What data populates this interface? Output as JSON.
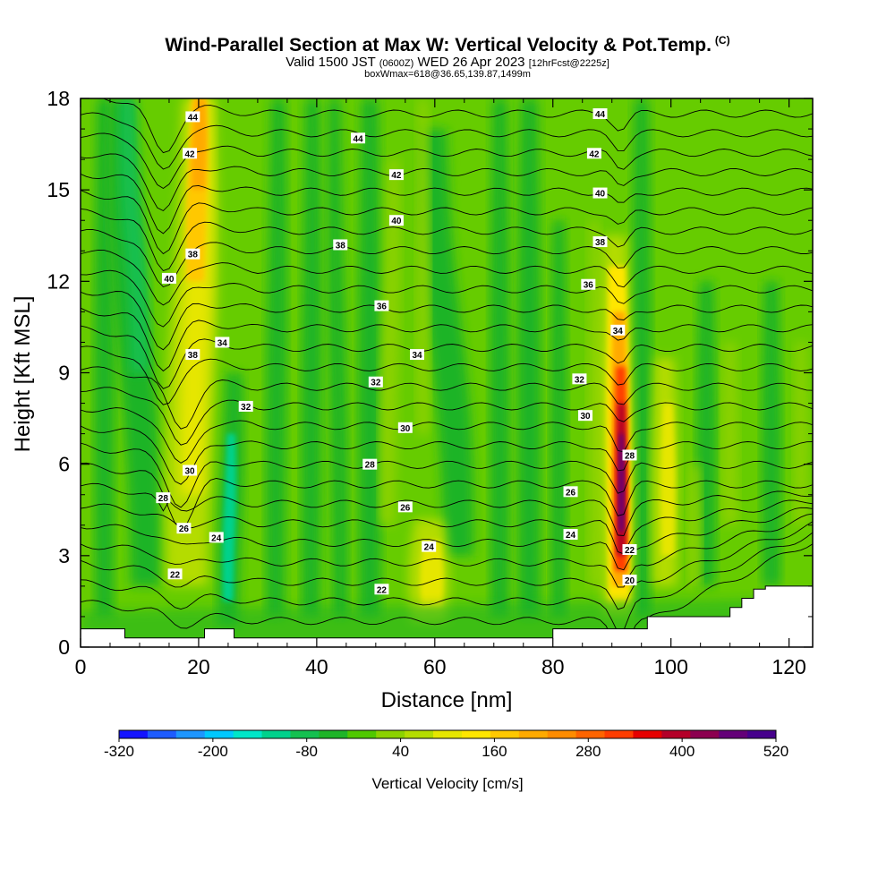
{
  "header": {
    "title": "Wind-Parallel Section at Max W: Vertical Velocity & Pot.Temp.",
    "copyright": "(C)",
    "valid_prefix": "Valid 1500 JST",
    "valid_utc": "(0600Z)",
    "valid_date": "WED 26 Apr 2023",
    "forecast": "[12hrFcst@2225z]",
    "boxwmax": "boxWmax=618@36.65,139.87,1499m"
  },
  "colors": {
    "background_green": "#66cc00",
    "terrain": "#ffffff",
    "contour": "#000000"
  },
  "chart_data": {
    "type": "heatmap",
    "xlabel": "Distance [nm]",
    "ylabel": "Height [Kft MSL]",
    "xlim": [
      0,
      124
    ],
    "ylim": [
      0,
      18
    ],
    "x_ticks": [
      0,
      20,
      40,
      60,
      80,
      100,
      120
    ],
    "y_ticks": [
      0,
      3,
      6,
      9,
      12,
      15,
      18
    ],
    "colorbar": {
      "title": "Vertical Velocity [cm/s]",
      "min": -320,
      "max": 520,
      "step": 40,
      "tick_labels": [
        "-320",
        "-200",
        "-80",
        "40",
        "160",
        "280",
        "400",
        "520"
      ],
      "colors": [
        "#1414ff",
        "#1e5cff",
        "#1e96ff",
        "#00c8ff",
        "#00e6c8",
        "#00d28c",
        "#14c050",
        "#1eb428",
        "#50c800",
        "#8cd200",
        "#b4dc00",
        "#e6e600",
        "#ffe600",
        "#ffc800",
        "#ffaa00",
        "#ff8c00",
        "#ff6400",
        "#ff3c00",
        "#e60000",
        "#b40028",
        "#8c0050",
        "#640078",
        "#46008c"
      ]
    },
    "features": [
      {
        "name": "updraft",
        "x": 19,
        "y_min": 6,
        "y_max": 18,
        "peak_w": 250
      },
      {
        "name": "updraft",
        "x": 91,
        "y_min": 2,
        "y_max": 13,
        "peak_w": 618
      },
      {
        "name": "updraft",
        "x": 99,
        "y_min": 3,
        "y_max": 9,
        "peak_w": 120
      },
      {
        "name": "updraft",
        "x": 59,
        "y_min": 1,
        "y_max": 4,
        "peak_w": 110
      },
      {
        "name": "downdraft",
        "x": 25,
        "y_min": 2,
        "y_max": 8,
        "peak_w": -110
      },
      {
        "name": "downdraft",
        "x": 10,
        "y_min": 10,
        "y_max": 18,
        "peak_w": -80
      }
    ],
    "isentropes": {
      "units": "C",
      "labels": [
        {
          "value": "44",
          "x": 19,
          "y": 17.4
        },
        {
          "value": "42",
          "x": 18.5,
          "y": 16.2
        },
        {
          "value": "40",
          "x": 15,
          "y": 12.1
        },
        {
          "value": "38",
          "x": 19,
          "y": 12.9
        },
        {
          "value": "38",
          "x": 19,
          "y": 9.6
        },
        {
          "value": "34",
          "x": 24,
          "y": 10.0
        },
        {
          "value": "32",
          "x": 28,
          "y": 7.9
        },
        {
          "value": "30",
          "x": 18.5,
          "y": 5.8
        },
        {
          "value": "28",
          "x": 14,
          "y": 4.9
        },
        {
          "value": "26",
          "x": 17.5,
          "y": 3.9
        },
        {
          "value": "24",
          "x": 23,
          "y": 3.6
        },
        {
          "value": "22",
          "x": 16,
          "y": 2.4
        },
        {
          "value": "44",
          "x": 47,
          "y": 16.7
        },
        {
          "value": "42",
          "x": 53.5,
          "y": 15.5
        },
        {
          "value": "40",
          "x": 53.5,
          "y": 14.0
        },
        {
          "value": "38",
          "x": 44,
          "y": 13.2
        },
        {
          "value": "36",
          "x": 51,
          "y": 11.2
        },
        {
          "value": "34",
          "x": 57,
          "y": 9.6
        },
        {
          "value": "32",
          "x": 50,
          "y": 8.7
        },
        {
          "value": "30",
          "x": 55,
          "y": 7.2
        },
        {
          "value": "28",
          "x": 49,
          "y": 6.0
        },
        {
          "value": "26",
          "x": 55,
          "y": 4.6
        },
        {
          "value": "24",
          "x": 59,
          "y": 3.3
        },
        {
          "value": "22",
          "x": 51,
          "y": 1.9
        },
        {
          "value": "44",
          "x": 88,
          "y": 17.5
        },
        {
          "value": "42",
          "x": 87,
          "y": 16.2
        },
        {
          "value": "40",
          "x": 88,
          "y": 14.9
        },
        {
          "value": "38",
          "x": 88,
          "y": 13.3
        },
        {
          "value": "36",
          "x": 86,
          "y": 11.9
        },
        {
          "value": "34",
          "x": 91,
          "y": 10.4
        },
        {
          "value": "32",
          "x": 84.5,
          "y": 8.8
        },
        {
          "value": "30",
          "x": 85.5,
          "y": 7.6
        },
        {
          "value": "28",
          "x": 93,
          "y": 6.3
        },
        {
          "value": "26",
          "x": 83,
          "y": 5.1
        },
        {
          "value": "24",
          "x": 83,
          "y": 3.7
        },
        {
          "value": "22",
          "x": 93,
          "y": 3.2
        },
        {
          "value": "20",
          "x": 93,
          "y": 2.2
        }
      ]
    },
    "terrain_height_kft": [
      [
        0,
        0.6
      ],
      [
        7.5,
        0.6
      ],
      [
        7.5,
        0.3
      ],
      [
        21,
        0.3
      ],
      [
        21,
        0.6
      ],
      [
        26,
        0.6
      ],
      [
        26,
        0.3
      ],
      [
        80,
        0.3
      ],
      [
        80,
        0.6
      ],
      [
        96,
        0.6
      ],
      [
        96,
        1.0
      ],
      [
        110,
        1.0
      ],
      [
        110,
        1.3
      ],
      [
        112,
        1.3
      ],
      [
        112,
        1.6
      ],
      [
        114,
        1.6
      ],
      [
        114,
        1.9
      ],
      [
        116,
        1.9
      ],
      [
        116,
        2.0
      ],
      [
        124,
        2.0
      ]
    ]
  }
}
